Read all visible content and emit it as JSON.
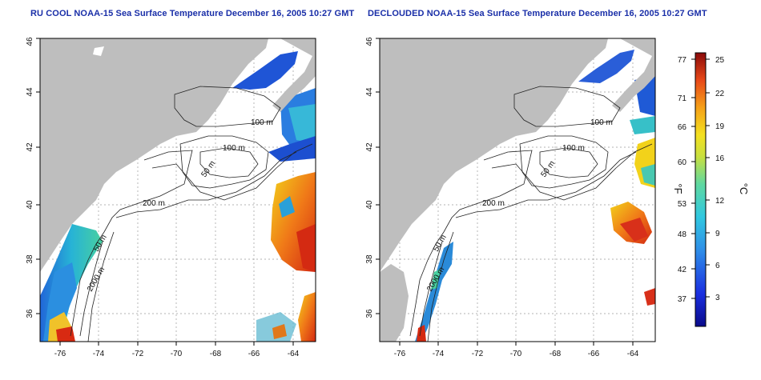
{
  "titles": {
    "left": "RU COOL NOAA-15 Sea Surface Temperature December 16, 2005 10:27 GMT",
    "right": "DECLOUDED NOAA-15 Sea Surface Temperature December 16, 2005 10:27 GMT"
  },
  "axes": {
    "lon_ticks": [
      "-76",
      "-74",
      "-72",
      "-70",
      "-68",
      "-66",
      "-64"
    ],
    "lat_ticks": [
      "36",
      "38",
      "40",
      "42",
      "44",
      "46"
    ]
  },
  "contour_labels": {
    "left": [
      "100 m",
      "100 m",
      "50 m",
      "200 m",
      "50 m",
      "2000 m"
    ],
    "right": [
      "100 m",
      "100 m",
      "50 m",
      "200 m",
      "50 m",
      "2000 m"
    ]
  },
  "colorbar": {
    "fahrenheit_ticks": [
      "77",
      "71",
      "66",
      "60",
      "53",
      "48",
      "42",
      "37"
    ],
    "celsius_ticks": [
      "25",
      "22",
      "19",
      "16",
      "12",
      "9",
      "6",
      "3"
    ],
    "fahrenheit_unit": "°F",
    "celsius_unit": "°C"
  },
  "colors": {
    "title": "#1a2fa8",
    "land": "#bebebe",
    "contour": "#222222",
    "grid": "#9a9a9a"
  }
}
